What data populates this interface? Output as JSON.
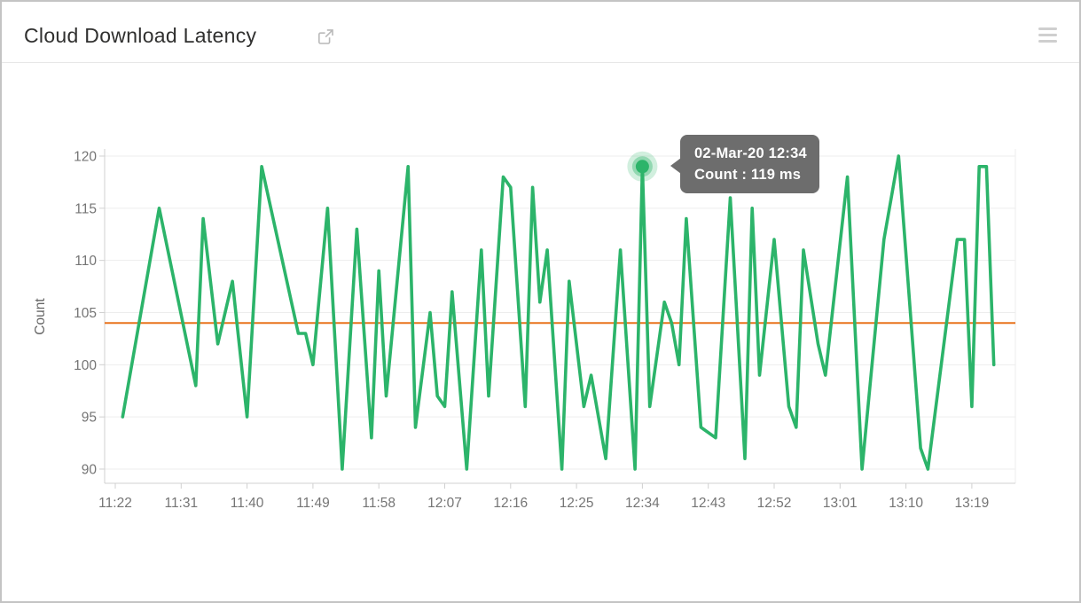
{
  "header": {
    "title": "Cloud Download Latency",
    "title_action_icon": "external-link-icon",
    "right_icon": "hamburger-menu-icon"
  },
  "tooltip": {
    "line1": "02-Mar-20 12:34",
    "line2": "Count : 119 ms"
  },
  "colors": {
    "series_line": "#2cb46a",
    "marker_halo": "rgba(44,180,106,0.30)",
    "threshold_line": "#e8731d",
    "tooltip_bg": "#6d6d6d",
    "axis_text": "#757575",
    "grid_line": "#ededed",
    "axis_line": "#d0d0d0"
  },
  "chart_data": {
    "type": "line",
    "title": "Cloud Download Latency",
    "xlabel": "",
    "ylabel": "Count",
    "unit": "ms",
    "grid": true,
    "legend": "none",
    "ylim": [
      88.5,
      121
    ],
    "y_ticks": [
      90,
      95,
      100,
      105,
      110,
      115,
      120
    ],
    "x_ticks": [
      "11:22",
      "11:31",
      "11:40",
      "11:49",
      "11:58",
      "12:07",
      "12:16",
      "12:25",
      "12:34",
      "12:43",
      "12:52",
      "13:01",
      "13:10",
      "13:19"
    ],
    "threshold": {
      "value": 104,
      "color": "#e8731d"
    },
    "marked_point": {
      "time": "12:34",
      "value": 119,
      "tooltip": "02-Mar-20 12:34 / Count : 119 ms"
    },
    "series": [
      {
        "name": "Count",
        "color": "#2cb46a",
        "points": [
          [
            "11:23",
            95
          ],
          [
            "11:28",
            115
          ],
          [
            "11:33",
            98
          ],
          [
            "11:34",
            114
          ],
          [
            "11:36",
            102
          ],
          [
            "11:38",
            108
          ],
          [
            "11:40",
            95
          ],
          [
            "11:42",
            119
          ],
          [
            "11:47",
            103
          ],
          [
            "11:48",
            103
          ],
          [
            "11:49",
            100
          ],
          [
            "11:51",
            115
          ],
          [
            "11:53",
            90
          ],
          [
            "11:55",
            113
          ],
          [
            "11:57",
            93
          ],
          [
            "11:58",
            109
          ],
          [
            "11:59",
            97
          ],
          [
            "12:02",
            119
          ],
          [
            "12:03",
            94
          ],
          [
            "12:05",
            105
          ],
          [
            "12:06",
            97
          ],
          [
            "12:07",
            96
          ],
          [
            "12:08",
            107
          ],
          [
            "12:10",
            90
          ],
          [
            "12:12",
            111
          ],
          [
            "12:13",
            97
          ],
          [
            "12:15",
            118
          ],
          [
            "12:16",
            117
          ],
          [
            "12:18",
            96
          ],
          [
            "12:19",
            117
          ],
          [
            "12:20",
            106
          ],
          [
            "12:21",
            111
          ],
          [
            "12:23",
            90
          ],
          [
            "12:24",
            108
          ],
          [
            "12:26",
            96
          ],
          [
            "12:27",
            99
          ],
          [
            "12:29",
            91
          ],
          [
            "12:31",
            111
          ],
          [
            "12:33",
            90
          ],
          [
            "12:34",
            119
          ],
          [
            "12:35",
            96
          ],
          [
            "12:37",
            106
          ],
          [
            "12:38",
            104
          ],
          [
            "12:39",
            100
          ],
          [
            "12:40",
            114
          ],
          [
            "12:42",
            94
          ],
          [
            "12:44",
            93
          ],
          [
            "12:46",
            116
          ],
          [
            "12:48",
            91
          ],
          [
            "12:49",
            115
          ],
          [
            "12:50",
            99
          ],
          [
            "12:52",
            112
          ],
          [
            "12:54",
            96
          ],
          [
            "12:55",
            94
          ],
          [
            "12:56",
            111
          ],
          [
            "12:58",
            102
          ],
          [
            "12:59",
            99
          ],
          [
            "13:02",
            118
          ],
          [
            "13:04",
            90
          ],
          [
            "13:07",
            112
          ],
          [
            "13:09",
            120
          ],
          [
            "13:12",
            92
          ],
          [
            "13:13",
            90
          ],
          [
            "13:17",
            112
          ],
          [
            "13:18",
            112
          ],
          [
            "13:19",
            96
          ],
          [
            "13:20",
            119
          ],
          [
            "13:21",
            119
          ],
          [
            "13:22",
            100
          ]
        ]
      }
    ]
  }
}
